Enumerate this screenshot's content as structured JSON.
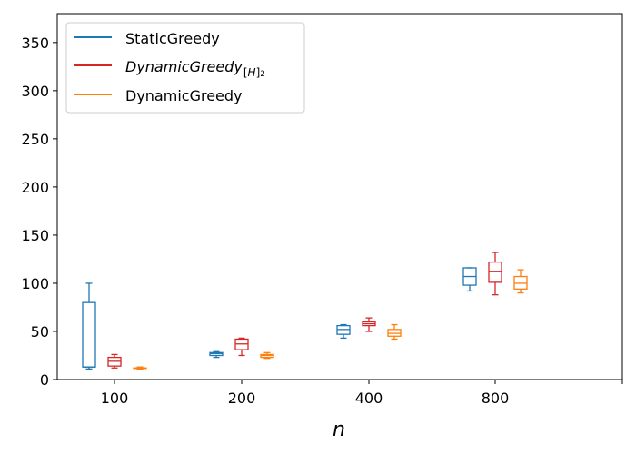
{
  "chart_data": {
    "type": "boxplot",
    "xlabel": "n",
    "ylabel": "",
    "ylim": [
      0,
      380
    ],
    "yticks": [
      0,
      50,
      100,
      150,
      200,
      250,
      300,
      350
    ],
    "categories": [
      "100",
      "200",
      "400",
      "800"
    ],
    "legend_position": "top-left",
    "grid": false,
    "series": [
      {
        "name": "StaticGreedy",
        "color": "#1f77b4",
        "boxes": [
          {
            "whislo": 11,
            "q1": 13,
            "med": 13,
            "q3": 80,
            "whishi": 100
          },
          {
            "whislo": 23,
            "q1": 25,
            "med": 27,
            "q3": 28,
            "whishi": 29
          },
          {
            "whislo": 43,
            "q1": 47,
            "med": 52,
            "q3": 56,
            "whishi": 57
          },
          {
            "whislo": 92,
            "q1": 98,
            "med": 107,
            "q3": 116,
            "whishi": 116
          }
        ]
      },
      {
        "name": "DynamicGreedy",
        "name_subscript": "[H]2",
        "color": "#d62728",
        "boxes": [
          {
            "whislo": 12,
            "q1": 14,
            "med": 19,
            "q3": 23,
            "whishi": 26
          },
          {
            "whislo": 25,
            "q1": 31,
            "med": 37,
            "q3": 42,
            "whishi": 43
          },
          {
            "whislo": 50,
            "q1": 56,
            "med": 58,
            "q3": 60,
            "whishi": 64
          },
          {
            "whislo": 88,
            "q1": 101,
            "med": 112,
            "q3": 122,
            "whishi": 132
          }
        ]
      },
      {
        "name": "DynamicGreedy",
        "color": "#ff7f0e",
        "boxes": [
          {
            "whislo": 11,
            "q1": 12,
            "med": 12,
            "q3": 12,
            "whishi": 13
          },
          {
            "whislo": 22,
            "q1": 23,
            "med": 25,
            "q3": 26,
            "whishi": 28
          },
          {
            "whislo": 42,
            "q1": 45,
            "med": 48,
            "q3": 52,
            "whishi": 57
          },
          {
            "whislo": 90,
            "q1": 94,
            "med": 100,
            "q3": 107,
            "whishi": 114
          }
        ]
      }
    ]
  }
}
